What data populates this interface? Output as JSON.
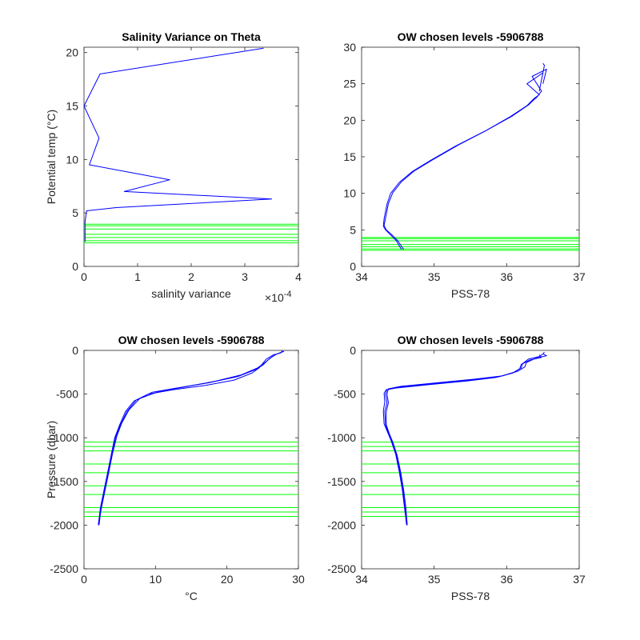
{
  "chart_data": [
    {
      "type": "line",
      "title": "Salinity Variance on Theta",
      "xlabel": "salinity variance",
      "ylabel": "Potential temp (°C)",
      "x_exponent_label": "×10",
      "x_exponent_power": "-4",
      "xlim": [
        0,
        4
      ],
      "ylim": [
        0,
        20.5
      ],
      "xticks": [
        0,
        1,
        2,
        3,
        4
      ],
      "yticks": [
        0,
        5,
        10,
        15,
        20
      ],
      "grid": false,
      "series": [
        {
          "color": "#0000ff",
          "x": [
            3.35,
            0.3,
            0.0,
            0.28,
            0.1,
            1.6,
            0.75,
            3.5,
            0.6,
            0.05,
            0.02,
            0.02
          ],
          "y": [
            20.4,
            18.0,
            15.0,
            12.0,
            9.5,
            8.1,
            7.0,
            6.3,
            5.5,
            5.2,
            4.2,
            2.3
          ]
        }
      ],
      "hlines": {
        "color": "#00ff00",
        "y": [
          2.2,
          2.4,
          2.7,
          3.0,
          3.5,
          3.8,
          3.95
        ]
      }
    },
    {
      "type": "line",
      "title": "OW chosen levels -5906788",
      "xlabel": "PSS-78",
      "ylabel": "",
      "xlim": [
        34,
        37
      ],
      "ylim": [
        0,
        30
      ],
      "xticks": [
        34,
        35,
        36,
        37
      ],
      "yticks": [
        0,
        5,
        10,
        15,
        20,
        25,
        30
      ],
      "grid": false,
      "series": [
        {
          "color": "#0000ff",
          "x": [
            34.55,
            34.48,
            34.4,
            34.33,
            34.3,
            34.31,
            34.35,
            34.4,
            34.52,
            34.7,
            34.95,
            35.3,
            35.7,
            36.05,
            36.28,
            36.38,
            36.45,
            36.28,
            36.5,
            36.45,
            36.52,
            36.5
          ],
          "y": [
            2.3,
            3.5,
            4.3,
            5.0,
            5.5,
            6.5,
            8.5,
            10.0,
            11.5,
            13.0,
            14.5,
            16.5,
            18.5,
            20.5,
            22.0,
            23.0,
            23.5,
            25.0,
            26.5,
            24.0,
            27.5,
            27.8
          ]
        },
        {
          "color": "#0000ff",
          "x": [
            34.58,
            34.5,
            34.42,
            34.34,
            34.31,
            34.33,
            34.37,
            34.43,
            34.55,
            34.73,
            34.98,
            35.33,
            35.72,
            36.08,
            36.3,
            36.42,
            36.48,
            36.35,
            36.55,
            36.5
          ],
          "y": [
            2.3,
            3.5,
            4.3,
            5.0,
            5.6,
            6.6,
            8.6,
            10.1,
            11.6,
            13.1,
            14.6,
            16.6,
            18.6,
            20.6,
            22.1,
            23.2,
            24.0,
            26.0,
            27.0,
            25.0
          ]
        }
      ],
      "hlines": {
        "color": "#00ff00",
        "y": [
          2.2,
          2.4,
          2.7,
          3.0,
          3.5,
          3.8,
          3.95
        ]
      }
    },
    {
      "type": "line",
      "title": "OW chosen levels -5906788",
      "xlabel": "°C",
      "ylabel": "Pressure (dbar)",
      "xlim": [
        0,
        30
      ],
      "ylim": [
        -2500,
        0
      ],
      "xticks": [
        0,
        10,
        20,
        30
      ],
      "yticks": [
        -2500,
        -2000,
        -1500,
        -1000,
        -500,
        0
      ],
      "grid": false,
      "series": [
        {
          "color": "#0000ff",
          "x": [
            2.0,
            2.3,
            2.8,
            3.3,
            3.8,
            4.3,
            5.0,
            5.8,
            7.0,
            9.0,
            12.5,
            17.0,
            21.0,
            23.5,
            24.5,
            25.5,
            26.5,
            27.5,
            27.8
          ],
          "y": [
            -2000,
            -1800,
            -1600,
            -1400,
            -1200,
            -1000,
            -850,
            -700,
            -580,
            -500,
            -450,
            -400,
            -340,
            -260,
            -200,
            -100,
            -50,
            -30,
            0
          ]
        },
        {
          "color": "#0000ff",
          "x": [
            2.1,
            2.4,
            2.9,
            3.4,
            3.9,
            4.4,
            5.1,
            6.0,
            7.3,
            9.5,
            13.0,
            17.5,
            21.5,
            24.0,
            25.0,
            26.0,
            27.0,
            28.0
          ],
          "y": [
            -2000,
            -1800,
            -1600,
            -1400,
            -1200,
            -1000,
            -850,
            -700,
            -570,
            -480,
            -430,
            -370,
            -300,
            -220,
            -170,
            -90,
            -40,
            -10
          ]
        },
        {
          "color": "#0000ff",
          "x": [
            2.0,
            2.5,
            3.0,
            3.5,
            4.0,
            4.6,
            5.3,
            6.3,
            7.8,
            10.5,
            14.0,
            18.5,
            22.0,
            24.3,
            25.3,
            26.5
          ],
          "y": [
            -1990,
            -1780,
            -1580,
            -1380,
            -1180,
            -980,
            -830,
            -680,
            -550,
            -470,
            -420,
            -350,
            -280,
            -200,
            -140,
            -60
          ]
        }
      ],
      "hlines": {
        "color": "#00ff00",
        "y": [
          -1050,
          -1100,
          -1150,
          -1300,
          -1400,
          -1550,
          -1650,
          -1800,
          -1850,
          -1900
        ]
      }
    },
    {
      "type": "line",
      "title": "OW chosen levels -5906788",
      "xlabel": "PSS-78",
      "ylabel": "",
      "xlim": [
        34,
        37
      ],
      "ylim": [
        -2500,
        0
      ],
      "xticks": [
        34,
        35,
        36,
        37
      ],
      "yticks": [
        -2500,
        -2000,
        -1500,
        -1000,
        -500,
        0
      ],
      "grid": false,
      "series": [
        {
          "color": "#0000ff",
          "x": [
            34.62,
            34.6,
            34.57,
            34.53,
            34.48,
            34.42,
            34.37,
            34.33,
            34.32,
            34.35,
            34.33,
            34.35,
            34.5,
            35.0,
            35.5,
            35.9,
            36.1,
            36.2,
            36.22,
            36.3,
            36.45,
            36.5,
            36.52
          ],
          "y": [
            -2000,
            -1800,
            -1600,
            -1400,
            -1200,
            -1050,
            -950,
            -850,
            -700,
            -600,
            -500,
            -450,
            -420,
            -380,
            -340,
            -300,
            -250,
            -200,
            -150,
            -100,
            -70,
            -40,
            -20
          ]
        },
        {
          "color": "#0000ff",
          "x": [
            34.63,
            34.61,
            34.58,
            34.54,
            34.49,
            34.43,
            34.38,
            34.34,
            34.34,
            34.37,
            34.35,
            34.37,
            34.55,
            35.05,
            35.55,
            35.95,
            36.15,
            36.25,
            36.27,
            36.4,
            36.55,
            36.5
          ],
          "y": [
            -2000,
            -1800,
            -1600,
            -1400,
            -1200,
            -1050,
            -950,
            -850,
            -700,
            -600,
            -500,
            -440,
            -410,
            -370,
            -330,
            -290,
            -240,
            -190,
            -140,
            -90,
            -60,
            -40
          ]
        },
        {
          "color": "#0000ff",
          "x": [
            34.62,
            34.59,
            34.56,
            34.52,
            34.47,
            34.41,
            34.36,
            34.31,
            34.3,
            34.32,
            34.31,
            34.34,
            34.48,
            34.95,
            35.45,
            35.85,
            36.08,
            36.18,
            36.2,
            36.32,
            36.48,
            36.45
          ],
          "y": [
            -1990,
            -1790,
            -1590,
            -1390,
            -1190,
            -1040,
            -940,
            -840,
            -690,
            -590,
            -490,
            -450,
            -430,
            -390,
            -350,
            -310,
            -260,
            -210,
            -160,
            -110,
            -80,
            -50
          ]
        }
      ],
      "hlines": {
        "color": "#00ff00",
        "y": [
          -1050,
          -1100,
          -1150,
          -1300,
          -1400,
          -1550,
          -1650,
          -1800,
          -1850,
          -1900
        ]
      }
    }
  ]
}
